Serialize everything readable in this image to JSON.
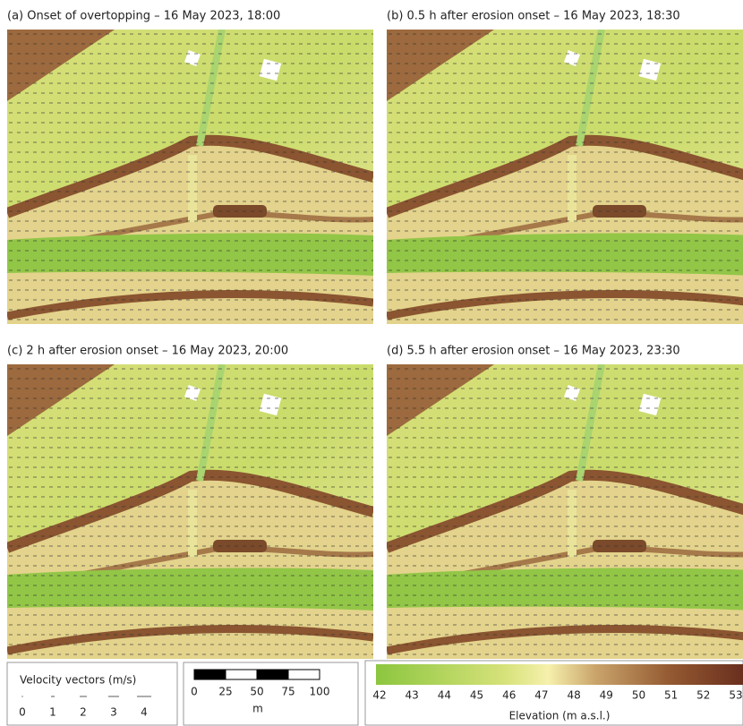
{
  "panels": [
    {
      "title": "(a) Onset of overtopping – 16 May 2023, 18:00"
    },
    {
      "title": "(b) 0.5 h after erosion onset – 16 May 2023, 18:30"
    },
    {
      "title": "(c) 2 h after erosion onset – 16 May 2023, 20:00"
    },
    {
      "title": "(d) 5.5 h after erosion onset – 16 May 2023, 23:30"
    }
  ],
  "velocity_legend": {
    "title": "Velocity vectors  (m/s)",
    "labels": [
      0,
      1,
      2,
      3,
      4
    ]
  },
  "scale_bar": {
    "labels": [
      0,
      25,
      50,
      75,
      100
    ],
    "unit": "m"
  },
  "elevation_legend": {
    "labels": [
      42,
      43,
      44,
      45,
      46,
      47,
      48,
      49,
      50,
      51,
      52,
      53
    ],
    "title": "Elevation (m a.s.l.)"
  }
}
